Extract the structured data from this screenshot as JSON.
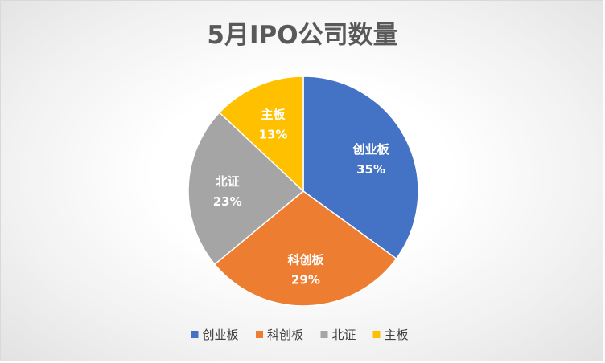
{
  "chart_data": {
    "type": "pie",
    "title": "5月IPO公司数量",
    "categories": [
      "创业板",
      "科创板",
      "北证",
      "主板"
    ],
    "values": [
      35,
      29,
      23,
      13
    ],
    "value_labels": [
      "35%",
      "29%",
      "23%",
      "13%"
    ],
    "colors": [
      "#4472C4",
      "#ED7D31",
      "#A5A5A5",
      "#FFC000"
    ],
    "start_angle_deg": 0,
    "direction": "clockwise",
    "legend_position": "bottom"
  }
}
